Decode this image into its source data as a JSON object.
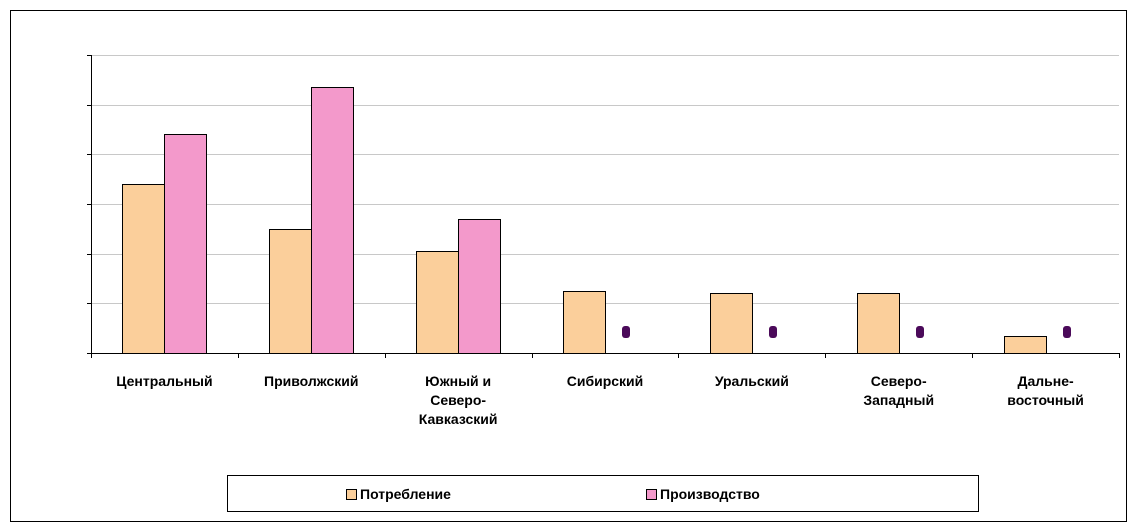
{
  "chart_data": {
    "type": "bar",
    "categories": [
      [
        "Центральный"
      ],
      [
        "Приволжский"
      ],
      [
        "Южный и",
        "Северо-",
        "Кавказский"
      ],
      [
        "Сибирский"
      ],
      [
        "Уральский"
      ],
      [
        "Северо-",
        "Западный"
      ],
      [
        "Дальне-",
        "восточный"
      ]
    ],
    "series": [
      {
        "name": "Потребление",
        "color": "#fbcf9b",
        "values": [
          3.4,
          2.5,
          2.05,
          1.25,
          1.2,
          1.2,
          0.35
        ]
      },
      {
        "name": "Производство",
        "color": "#f399cb",
        "values": [
          4.4,
          5.35,
          2.7,
          0,
          0,
          0,
          0
        ]
      }
    ],
    "ylim": [
      0,
      6
    ],
    "y_tick_step": 1,
    "grid": true,
    "axis_values_shown": false,
    "legend_position": "bottom",
    "zero_marker_color": "#4b0a5a"
  }
}
